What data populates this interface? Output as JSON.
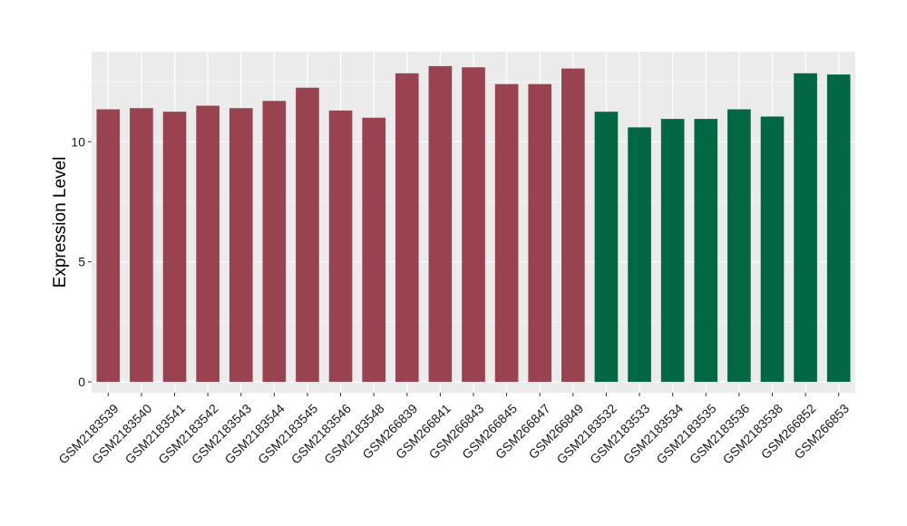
{
  "chart_data": {
    "type": "bar",
    "title": "",
    "xlabel": "",
    "ylabel": "Expression Level",
    "ylim": [
      -0.45,
      13.75
    ],
    "yticks": [
      0,
      5,
      10
    ],
    "grid": true,
    "legend": "none",
    "colors": {
      "group_a": "#9a4350",
      "group_b": "#026844",
      "panel": "#ebebeb",
      "grid": "#ffffff"
    },
    "categories": [
      "GSM2183539",
      "GSM2183540",
      "GSM2183541",
      "GSM2183542",
      "GSM2183543",
      "GSM2183544",
      "GSM2183545",
      "GSM2183546",
      "GSM2183548",
      "GSM266839",
      "GSM266841",
      "GSM266843",
      "GSM266845",
      "GSM266847",
      "GSM266849",
      "GSM2183532",
      "GSM2183533",
      "GSM2183534",
      "GSM2183535",
      "GSM2183536",
      "GSM2183538",
      "GSM266852",
      "GSM266853"
    ],
    "values": [
      11.35,
      11.4,
      11.25,
      11.5,
      11.4,
      11.7,
      12.25,
      11.3,
      11.0,
      12.85,
      13.15,
      13.1,
      12.4,
      12.4,
      13.05,
      11.25,
      10.6,
      10.95,
      10.95,
      11.35,
      11.05,
      12.85,
      12.8
    ],
    "groups": [
      "a",
      "a",
      "a",
      "a",
      "a",
      "a",
      "a",
      "a",
      "a",
      "a",
      "a",
      "a",
      "a",
      "a",
      "a",
      "b",
      "b",
      "b",
      "b",
      "b",
      "b",
      "b",
      "b"
    ]
  }
}
